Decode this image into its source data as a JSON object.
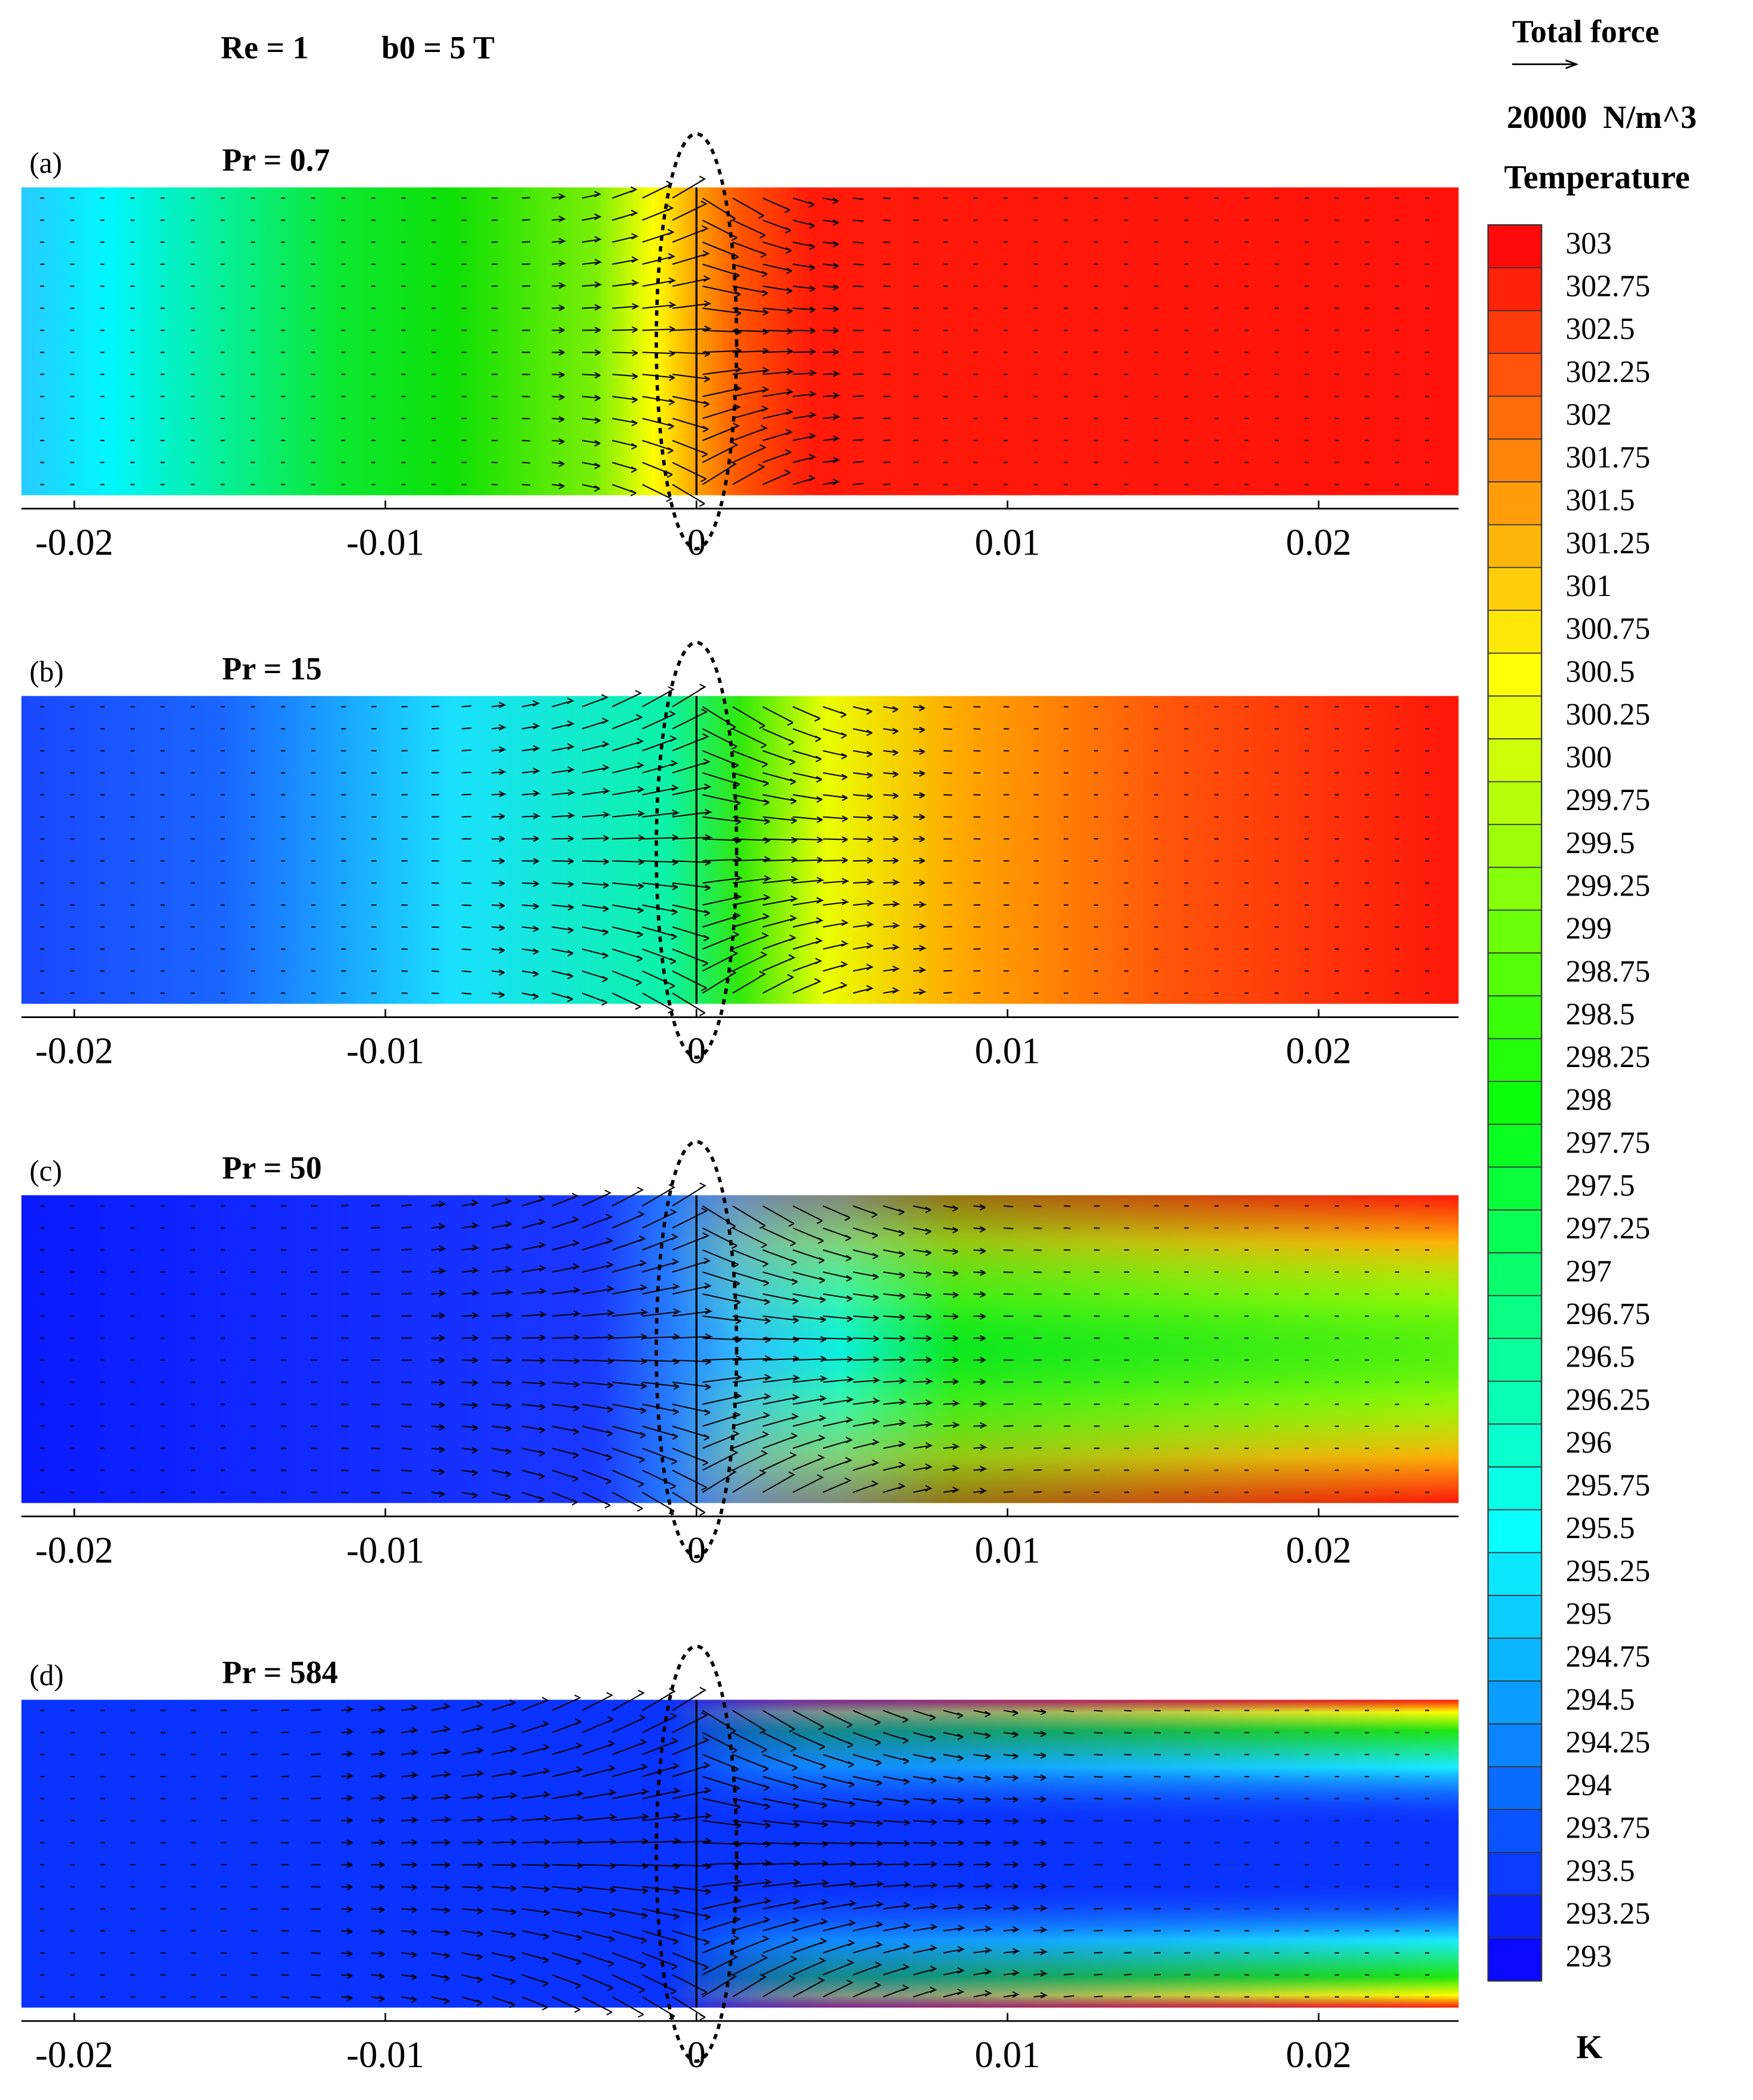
{
  "chart_data": {
    "type": "contour",
    "title": "Re = 1",
    "subtitle": "b0 = 5 T",
    "force_legend": {
      "title": "Total force",
      "scale": "20000  N/m^3"
    },
    "colorbar": {
      "title": "Temperature",
      "unit": "K",
      "lim": [
        293,
        303
      ],
      "ticks": [
        303,
        302.75,
        302.5,
        302.25,
        302,
        301.75,
        301.5,
        301.25,
        301,
        300.75,
        300.5,
        300.25,
        300,
        299.75,
        299.5,
        299.25,
        299,
        298.75,
        298.5,
        298.25,
        298,
        297.75,
        297.5,
        297.25,
        297,
        296.75,
        296.5,
        296.25,
        296,
        295.75,
        295.5,
        295.25,
        295,
        294.75,
        294.5,
        294.25,
        294,
        293.75,
        293.5,
        293.25,
        293
      ]
    },
    "panels": [
      {
        "label": "(a)",
        "title": "Pr = 0.7",
        "xlim": [
          -0.0217,
          0.0245
        ],
        "xticks": [
          -0.02,
          -0.01,
          0,
          0.01,
          0.02
        ]
      },
      {
        "label": "(b)",
        "title": "Pr = 15",
        "xlim": [
          -0.0217,
          0.0245
        ],
        "xticks": [
          -0.02,
          -0.01,
          0,
          0.01,
          0.02
        ]
      },
      {
        "label": "(c)",
        "title": "Pr = 50",
        "xlim": [
          -0.0217,
          0.0245
        ],
        "xticks": [
          -0.02,
          -0.01,
          0,
          0.01,
          0.02
        ]
      },
      {
        "label": "(d)",
        "title": "Pr = 584",
        "xlim": [
          -0.0217,
          0.0245
        ],
        "xticks": [
          -0.02,
          -0.01,
          0,
          0.01,
          0.02
        ]
      }
    ]
  }
}
